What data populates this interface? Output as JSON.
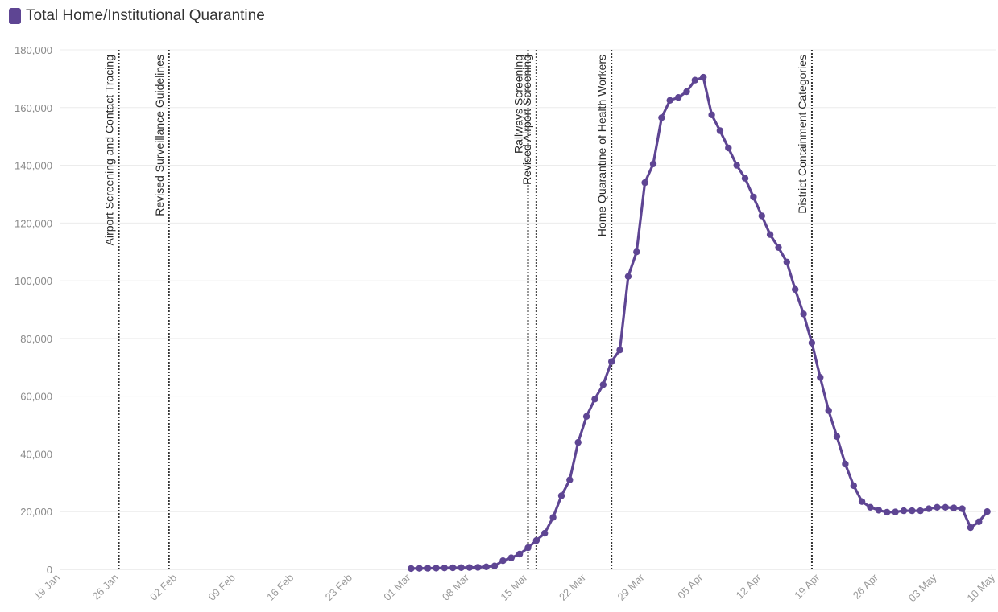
{
  "legend": {
    "label": "Total Home/Institutional Quarantine",
    "color": "#5e4593"
  },
  "chart_data": {
    "type": "line",
    "title": "",
    "xlabel": "",
    "ylabel": "",
    "x_type": "date",
    "x_tick_labels": [
      "19 Jan",
      "26 Jan",
      "02 Feb",
      "09 Feb",
      "16 Feb",
      "23 Feb",
      "01 Mar",
      "08 Mar",
      "15 Mar",
      "22 Mar",
      "29 Mar",
      "05 Apr",
      "12 Apr",
      "19 Apr",
      "26 Apr",
      "03 May",
      "10 May"
    ],
    "x_tick_dates": [
      "2020-01-19",
      "2020-01-26",
      "2020-02-02",
      "2020-02-09",
      "2020-02-16",
      "2020-02-23",
      "2020-03-01",
      "2020-03-08",
      "2020-03-15",
      "2020-03-22",
      "2020-03-29",
      "2020-04-05",
      "2020-04-12",
      "2020-04-19",
      "2020-04-26",
      "2020-05-03",
      "2020-05-10"
    ],
    "y_tick_labels": [
      "0",
      "20,000",
      "40,000",
      "60,000",
      "80,000",
      "100,000",
      "120,000",
      "140,000",
      "160,000",
      "180,000"
    ],
    "y_tick_values": [
      0,
      20000,
      40000,
      60000,
      80000,
      100000,
      120000,
      140000,
      160000,
      180000
    ],
    "ylim": [
      0,
      180000
    ],
    "xlim": [
      "2020-01-19",
      "2020-05-10"
    ],
    "grid": "horizontal",
    "legend_position": "top-left",
    "annotations": [
      {
        "date": "2020-01-26",
        "label": "Airport Screening and Contact Tracing"
      },
      {
        "date": "2020-02-01",
        "label": "Revised Surveillance Guidelines"
      },
      {
        "date": "2020-03-15",
        "label": "Railways Screening"
      },
      {
        "date": "2020-03-16",
        "label": "Revised Airport Screening"
      },
      {
        "date": "2020-03-25",
        "label": "Home Quarantine of Health Workers"
      },
      {
        "date": "2020-04-18",
        "label": "District Containment Categories"
      }
    ],
    "series": [
      {
        "name": "Total Home/Institutional Quarantine",
        "color": "#5e4593",
        "points": [
          [
            "2020-03-01",
            300
          ],
          [
            "2020-03-02",
            350
          ],
          [
            "2020-03-03",
            400
          ],
          [
            "2020-03-04",
            450
          ],
          [
            "2020-03-05",
            500
          ],
          [
            "2020-03-06",
            550
          ],
          [
            "2020-03-07",
            600
          ],
          [
            "2020-03-08",
            650
          ],
          [
            "2020-03-09",
            700
          ],
          [
            "2020-03-10",
            900
          ],
          [
            "2020-03-11",
            1200
          ],
          [
            "2020-03-12",
            3000
          ],
          [
            "2020-03-13",
            4000
          ],
          [
            "2020-03-14",
            5300
          ],
          [
            "2020-03-15",
            7500
          ],
          [
            "2020-03-16",
            10000
          ],
          [
            "2020-03-17",
            12500
          ],
          [
            "2020-03-18",
            18000
          ],
          [
            "2020-03-19",
            25500
          ],
          [
            "2020-03-20",
            31000
          ],
          [
            "2020-03-21",
            44000
          ],
          [
            "2020-03-22",
            53000
          ],
          [
            "2020-03-23",
            59000
          ],
          [
            "2020-03-24",
            64000
          ],
          [
            "2020-03-25",
            72000
          ],
          [
            "2020-03-26",
            76000
          ],
          [
            "2020-03-27",
            101500
          ],
          [
            "2020-03-28",
            110000
          ],
          [
            "2020-03-29",
            134000
          ],
          [
            "2020-03-30",
            140500
          ],
          [
            "2020-03-31",
            156500
          ],
          [
            "2020-04-01",
            162500
          ],
          [
            "2020-04-02",
            163500
          ],
          [
            "2020-04-03",
            165500
          ],
          [
            "2020-04-04",
            169500
          ],
          [
            "2020-04-05",
            170500
          ],
          [
            "2020-04-06",
            157500
          ],
          [
            "2020-04-07",
            152000
          ],
          [
            "2020-04-08",
            146000
          ],
          [
            "2020-04-09",
            140000
          ],
          [
            "2020-04-10",
            135500
          ],
          [
            "2020-04-11",
            129000
          ],
          [
            "2020-04-12",
            122500
          ],
          [
            "2020-04-13",
            116000
          ],
          [
            "2020-04-14",
            111500
          ],
          [
            "2020-04-15",
            106500
          ],
          [
            "2020-04-16",
            97000
          ],
          [
            "2020-04-17",
            88500
          ],
          [
            "2020-04-18",
            78500
          ],
          [
            "2020-04-19",
            66500
          ],
          [
            "2020-04-20",
            55000
          ],
          [
            "2020-04-21",
            46000
          ],
          [
            "2020-04-22",
            36500
          ],
          [
            "2020-04-23",
            29000
          ],
          [
            "2020-04-24",
            23500
          ],
          [
            "2020-04-25",
            21500
          ],
          [
            "2020-04-26",
            20500
          ],
          [
            "2020-04-27",
            19800
          ],
          [
            "2020-04-28",
            19900
          ],
          [
            "2020-04-29",
            20300
          ],
          [
            "2020-04-30",
            20300
          ],
          [
            "2020-05-01",
            20300
          ],
          [
            "2020-05-02",
            21000
          ],
          [
            "2020-05-03",
            21500
          ],
          [
            "2020-05-04",
            21500
          ],
          [
            "2020-05-05",
            21300
          ],
          [
            "2020-05-06",
            21000
          ],
          [
            "2020-05-07",
            14500
          ],
          [
            "2020-05-08",
            16500
          ],
          [
            "2020-05-09",
            20000
          ]
        ]
      }
    ]
  }
}
